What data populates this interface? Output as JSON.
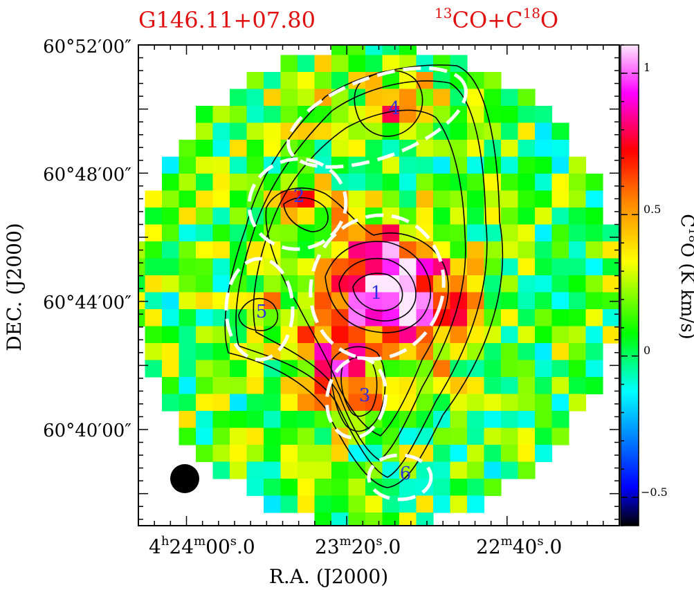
{
  "header": {
    "source_name": "G146.11+07.80",
    "tracer_prefix_13": "13",
    "tracer_co_plus_c": "CO+C",
    "tracer_prefix_18": "18",
    "tracer_o": "O",
    "title_color": "#e01010"
  },
  "axes": {
    "xlabel": "R.A. (J2000)",
    "ylabel": "DEC. (J2000)",
    "xticks": [
      {
        "h": "4",
        "hu": "h",
        "m": "24",
        "mu": "m",
        "s": "00",
        "su": "s",
        "frac": ".0"
      },
      {
        "h": "",
        "hu": "",
        "m": "23",
        "mu": "m",
        "s": "20",
        "su": "s",
        "frac": ".0"
      },
      {
        "h": "",
        "hu": "",
        "m": "22",
        "mu": "m",
        "s": "40",
        "su": "s",
        "frac": ".0"
      }
    ],
    "yticks": [
      "60°40′00″",
      "60°44′00″",
      "60°48′00″",
      "60°52′00″"
    ]
  },
  "colorbar": {
    "label_base": "C",
    "label_sup": "18",
    "label_rest": "O (K km/s)",
    "ticks": [
      "1",
      "0.5",
      "0",
      "−0.5"
    ],
    "range": [
      -0.6,
      1.1
    ],
    "colors": [
      "#000000",
      "#0000ff",
      "#00ffff",
      "#00ff00",
      "#ffff00",
      "#ff8000",
      "#ff0000",
      "#ff00ff",
      "#ffe8ff"
    ]
  },
  "chart_data": {
    "type": "heatmap",
    "title": "G146.11+07.80  13CO+C18O",
    "xlabel": "R.A. (J2000)",
    "ylabel": "DEC. (J2000)",
    "colorbar_label": "C18O (K km/s)",
    "value_range": [
      -0.6,
      1.1
    ],
    "grid": "pixelated map, circular coverage",
    "contour_overlay": "13CO integrated intensity (black contours)",
    "clumps": [
      {
        "id": "1",
        "label": "1",
        "approx_peak": 1.05
      },
      {
        "id": "2",
        "label": "2",
        "approx_peak": 0.6
      },
      {
        "id": "3",
        "label": "3",
        "approx_peak": 0.7
      },
      {
        "id": "4",
        "label": "4",
        "approx_peak": 0.8
      },
      {
        "id": "5",
        "label": "5",
        "approx_peak": 0.4
      },
      {
        "id": "6",
        "label": "6",
        "approx_peak": 0.3
      }
    ],
    "beam": "filled circle, lower-left"
  }
}
